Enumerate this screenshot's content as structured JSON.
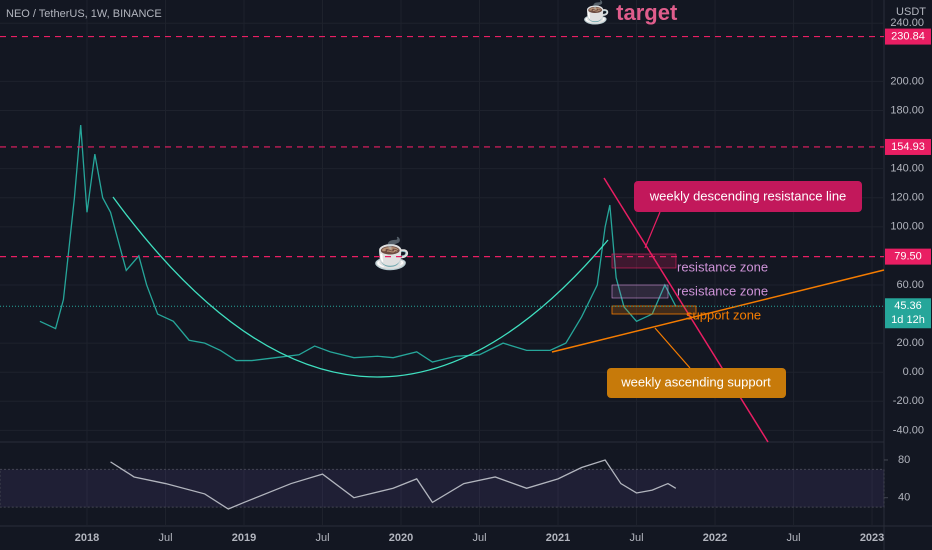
{
  "header": {
    "symbol": "NEO / TetherUS, 1W, BINANCE",
    "currency": "USDT",
    "headline": "☕ target",
    "icon": "☕"
  },
  "chart_data": [
    {
      "type": "line",
      "color": "#26a69a",
      "x": [
        2017.7,
        2017.8,
        2017.85,
        2017.92,
        2017.96,
        2018.0,
        2018.05,
        2018.1,
        2018.15,
        2018.25,
        2018.33,
        2018.38,
        2018.45,
        2018.55,
        2018.65,
        2018.75,
        2018.85,
        2018.95,
        2019.05,
        2019.2,
        2019.35,
        2019.45,
        2019.55,
        2019.7,
        2019.85,
        2019.95,
        2020.1,
        2020.2,
        2020.35,
        2020.5,
        2020.65,
        2020.8,
        2020.95,
        2021.05,
        2021.15,
        2021.25,
        2021.3,
        2021.33,
        2021.37,
        2021.42,
        2021.5,
        2021.6,
        2021.68,
        2021.75
      ],
      "values": [
        35,
        30,
        50,
        120,
        170,
        110,
        150,
        120,
        110,
        70,
        80,
        60,
        40,
        35,
        22,
        20,
        15,
        8,
        8,
        10,
        12,
        18,
        14,
        10,
        11,
        10,
        14,
        7,
        11,
        12,
        20,
        15,
        15,
        20,
        38,
        60,
        100,
        115,
        65,
        45,
        35,
        40,
        60,
        45.36
      ],
      "xlim": [
        2017.446,
        2023.076
      ],
      "ylim": [
        -48,
        256
      ],
      "xticks": [
        {
          "value": 2018,
          "label": "2018"
        },
        {
          "value": 2018.5,
          "label": "Jul"
        },
        {
          "value": 2019,
          "label": "2019"
        },
        {
          "value": 2019.5,
          "label": "Jul"
        },
        {
          "value": 2020,
          "label": "2020"
        },
        {
          "value": 2020.5,
          "label": "Jul"
        },
        {
          "value": 2021,
          "label": "2021"
        },
        {
          "value": 2021.5,
          "label": "Jul"
        },
        {
          "value": 2022,
          "label": "2022"
        },
        {
          "value": 2022.5,
          "label": "Jul"
        },
        {
          "value": 2023,
          "label": "2023"
        }
      ],
      "yticks": [
        {
          "value": 240,
          "label": "240.00"
        },
        {
          "value": 200,
          "label": "200.00"
        },
        {
          "value": 180,
          "label": "180.00"
        },
        {
          "value": 140,
          "label": "140.00"
        },
        {
          "value": 120,
          "label": "120.00"
        },
        {
          "value": 100,
          "label": "100.00"
        },
        {
          "value": 60,
          "label": "60.00"
        },
        {
          "value": 20,
          "label": "20.00"
        },
        {
          "value": 0,
          "label": "0.00"
        },
        {
          "value": -20,
          "label": "-20.00"
        },
        {
          "value": -40,
          "label": "-40.00"
        }
      ],
      "grid": true,
      "levels": [
        230.84,
        154.93,
        79.5
      ],
      "level_labels": [
        "230.84",
        "154.93",
        "79.50"
      ],
      "level_color": "#e91e63",
      "last_price": 45.36,
      "last_price_color": "#26a69a",
      "countdown": "1d 12h",
      "annotations": [
        "weekly descending resistance line",
        "resistance zone",
        "resistance zone",
        "support zone",
        "weekly ascending support"
      ]
    },
    {
      "type": "line",
      "color": "#b2b5be",
      "x": [
        2018.15,
        2018.3,
        2018.5,
        2018.75,
        2018.9,
        2019.0,
        2019.3,
        2019.5,
        2019.7,
        2019.95,
        2020.1,
        2020.2,
        2020.4,
        2020.6,
        2020.8,
        2021.0,
        2021.15,
        2021.3,
        2021.4,
        2021.5,
        2021.6,
        2021.7,
        2021.75
      ],
      "values": [
        78,
        62,
        55,
        44,
        28,
        35,
        55,
        65,
        40,
        50,
        60,
        35,
        55,
        62,
        50,
        60,
        72,
        80,
        55,
        45,
        48,
        55,
        50
      ],
      "ylim": [
        10,
        98
      ],
      "yticks": [
        80,
        40
      ],
      "band": [
        30,
        70
      ]
    }
  ]
}
